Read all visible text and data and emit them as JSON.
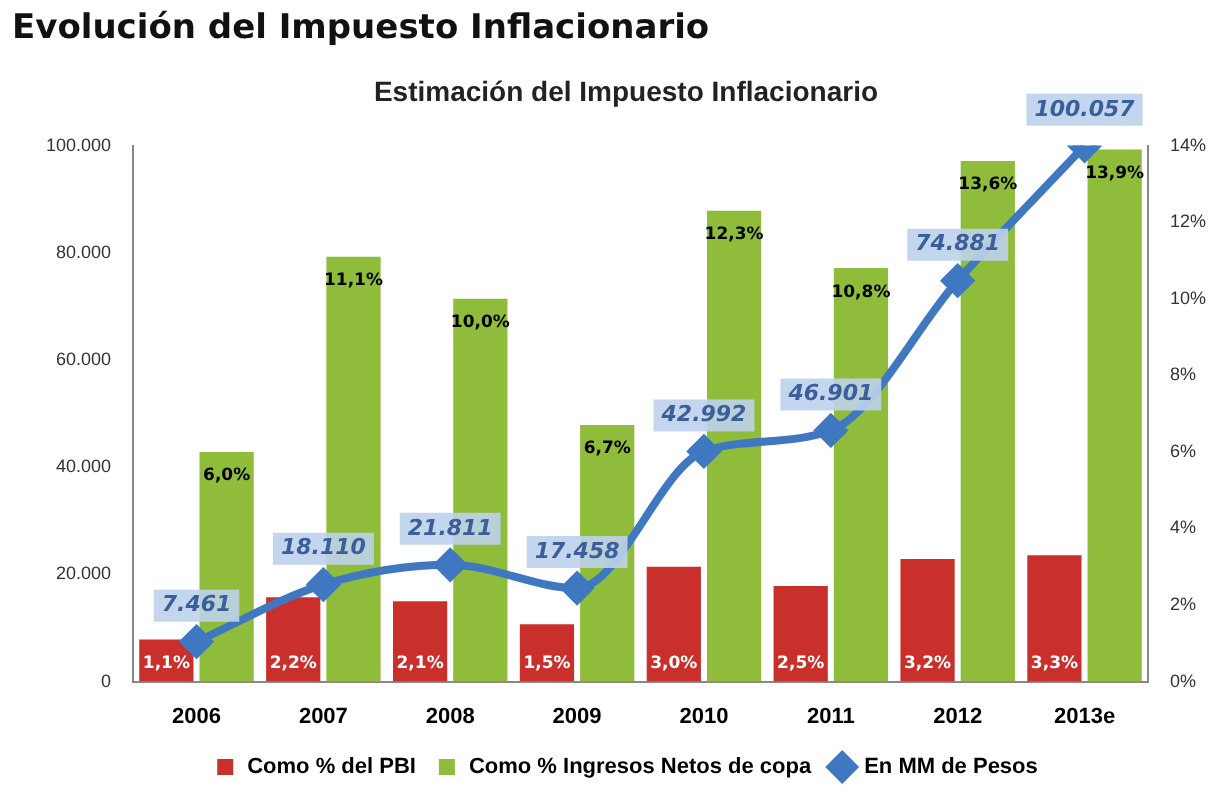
{
  "chart_data": {
    "type": "bar",
    "title": "Evolución del Impuesto Inflacionario",
    "subtitle": "Estimación del Impuesto Inflacionario",
    "categories": [
      "2006",
      "2007",
      "2008",
      "2009",
      "2010",
      "2011",
      "2012",
      "2013e"
    ],
    "series": [
      {
        "name": "Como % del PBI",
        "color": "#c9302c",
        "axis": "y2",
        "values": [
          1.1,
          2.2,
          2.1,
          1.5,
          3.0,
          2.5,
          3.2,
          3.3
        ],
        "value_labels": [
          "1,1%",
          "2,2%",
          "2,1%",
          "1,5%",
          "3,0%",
          "2,5%",
          "3,2%",
          "3,3%"
        ]
      },
      {
        "name": "Como % Ingresos Netos de copa",
        "color": "#8fbc3a",
        "axis": "y2",
        "values": [
          6.0,
          11.1,
          10.0,
          6.7,
          12.3,
          10.8,
          13.6,
          13.9
        ],
        "value_labels": [
          "6,0%",
          "11,1%",
          "10,0%",
          "6,7%",
          "12,3%",
          "10,8%",
          "13,6%",
          "13,9%"
        ]
      },
      {
        "name": "En MM de Pesos",
        "type": "line",
        "color": "#3f78c0",
        "axis": "y",
        "marker": "diamond",
        "values": [
          7461,
          18110,
          21811,
          17458,
          42992,
          46901,
          74881,
          100057
        ],
        "value_labels": [
          "7.461",
          "18.110",
          "21.811",
          "17.458",
          "42.992",
          "46.901",
          "74.881",
          "100.057"
        ]
      }
    ],
    "ylim": [
      0,
      100100
    ],
    "yticks": [
      0,
      {
        "value": 20000,
        "label": "20.000"
      },
      {
        "value": 40000,
        "label": "40.000"
      },
      {
        "value": 60000,
        "label": "60.000"
      },
      {
        "value": 80000,
        "label": "80.000"
      },
      {
        "value": 100000,
        "label": "100.000"
      }
    ],
    "y2lim": [
      0,
      14
    ],
    "y2ticks": [
      {
        "value": 0,
        "label": "0%"
      },
      {
        "value": 2,
        "label": "2%"
      },
      {
        "value": 4,
        "label": "4%"
      },
      {
        "value": 6,
        "label": "6%"
      },
      {
        "value": 8,
        "label": "8%"
      },
      {
        "value": 10,
        "label": "10%"
      },
      {
        "value": 12,
        "label": "12%"
      },
      {
        "value": 14,
        "label": "14%"
      }
    ],
    "grid": false,
    "legend": "bottom"
  }
}
